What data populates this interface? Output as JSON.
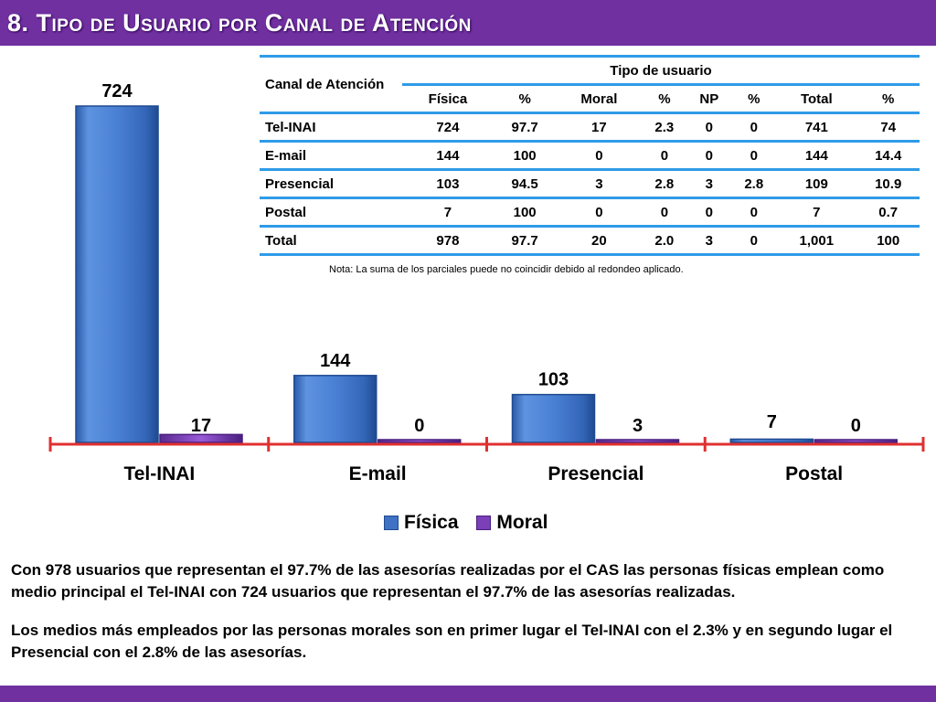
{
  "title": {
    "prefix": "8. ",
    "text": "Tipo de Usuario por Canal de Atención"
  },
  "colors": {
    "fisica": "#3f72c4",
    "moral": "#7b3fb8",
    "accent": "#7030a0",
    "axis": "#e03030",
    "table_line": "#2f9be8"
  },
  "chart_data": {
    "type": "bar",
    "categories": [
      "Tel-INAI",
      "E-mail",
      "Presencial",
      "Postal"
    ],
    "series": [
      {
        "name": "Física",
        "values": [
          724,
          144,
          103,
          7
        ]
      },
      {
        "name": "Moral",
        "values": [
          17,
          0,
          3,
          0
        ]
      }
    ],
    "legend": [
      "Física",
      "Moral"
    ],
    "legend_position": "bottom",
    "ylim": [
      0,
      724
    ]
  },
  "table": {
    "corner_label": "Canal de Atención",
    "group_label": "Tipo de usuario",
    "columns": [
      "Física",
      "%",
      "Moral",
      "%",
      "NP",
      "%",
      "Total",
      "%"
    ],
    "rows": [
      {
        "label": "Tel-INAI",
        "values": [
          "724",
          "97.7",
          "17",
          "2.3",
          "0",
          "0",
          "741",
          "74"
        ]
      },
      {
        "label": "E-mail",
        "values": [
          "144",
          "100",
          "0",
          "0",
          "0",
          "0",
          "144",
          "14.4"
        ]
      },
      {
        "label": "Presencial",
        "values": [
          "103",
          "94.5",
          "3",
          "2.8",
          "3",
          "2.8",
          "109",
          "10.9"
        ]
      },
      {
        "label": "Postal",
        "values": [
          "7",
          "100",
          "0",
          "0",
          "0",
          "0",
          "7",
          "0.7"
        ]
      },
      {
        "label": "Total",
        "values": [
          "978",
          "97.7",
          "20",
          "2.0",
          "3",
          "0",
          "1,001",
          "100"
        ]
      }
    ]
  },
  "nota": "Nota: La suma de los parciales puede no coincidir debido al redondeo aplicado.",
  "paragraph1": "Con 978 usuarios que representan el 97.7% de las asesorías realizadas por el CAS las personas físicas emplean como medio principal el Tel-INAI con 724 usuarios que representan el 97.7% de las asesorías realizadas.",
  "paragraph2": "Los medios más empleados por las personas morales son en primer lugar el Tel-INAI con el 2.3% y en segundo lugar el Presencial con el 2.8% de las asesorías."
}
